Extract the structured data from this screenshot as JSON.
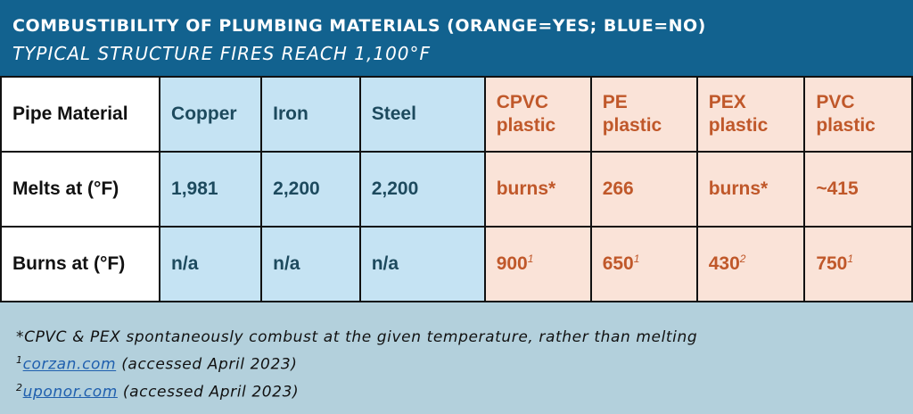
{
  "header": {
    "title": "COMBUSTIBILITY OF PLUMBING MATERIALS (ORANGE=YES; BLUE=NO)",
    "subtitle": "TYPICAL STRUCTURE FIRES REACH 1,100°F"
  },
  "colors": {
    "header_bg": "#12628f",
    "blue_cell": "#c5e3f3",
    "orange_cell": "#fae3d8",
    "orange_text": "#c0582a",
    "blue_text": "#1d4a5e",
    "footer_bg": "#b3d0dc"
  },
  "table": {
    "row_labels": [
      "Pipe Material",
      "Melts at (°F)",
      "Burns at (°F)"
    ],
    "materials": [
      {
        "name_line1": "Copper",
        "name_line2": "",
        "melts": "1,981",
        "burns": "n/a",
        "burns_ref": "",
        "combustible": false
      },
      {
        "name_line1": "Iron",
        "name_line2": "",
        "melts": "2,200",
        "burns": "n/a",
        "burns_ref": "",
        "combustible": false
      },
      {
        "name_line1": "Steel",
        "name_line2": "",
        "melts": "2,200",
        "burns": "n/a",
        "burns_ref": "",
        "combustible": false
      },
      {
        "name_line1": "CPVC",
        "name_line2": "plastic",
        "melts": "burns*",
        "burns": "900",
        "burns_ref": "1",
        "combustible": true
      },
      {
        "name_line1": "PE",
        "name_line2": "plastic",
        "melts": "266",
        "burns": "650",
        "burns_ref": "1",
        "combustible": true
      },
      {
        "name_line1": "PEX",
        "name_line2": "plastic",
        "melts": "burns*",
        "burns": "430",
        "burns_ref": "2",
        "combustible": true
      },
      {
        "name_line1": "PVC",
        "name_line2": "plastic",
        "melts": "~415",
        "burns": "750",
        "burns_ref": "1",
        "combustible": true
      }
    ]
  },
  "footer": {
    "note": "*CPVC & PEX spontaneously combust at the given temperature, rather than melting",
    "refs": [
      {
        "num": "1",
        "link": "corzan.com",
        "suffix": " (accessed April 2023)"
      },
      {
        "num": "2",
        "link": "uponor.com",
        "suffix": " (accessed April 2023)"
      }
    ]
  }
}
